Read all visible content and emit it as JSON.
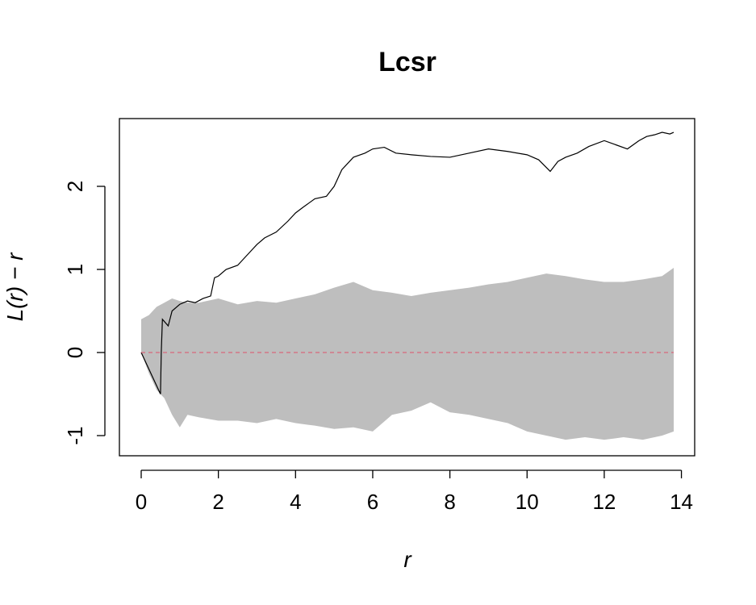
{
  "chart_data": {
    "type": "line",
    "title": "Lcsr",
    "xlabel": "r",
    "ylabel": "L(r) − r",
    "xlim": [
      0,
      13.8
    ],
    "ylim": [
      -1.25,
      2.8
    ],
    "x_ticks": [
      0,
      2,
      4,
      6,
      8,
      10,
      12,
      14
    ],
    "x_tick_labels": [
      "0",
      "2",
      "4",
      "6",
      "8",
      "10",
      "12",
      "14"
    ],
    "y_ticks": [
      -1,
      0,
      1,
      2
    ],
    "y_tick_labels": [
      "-1",
      "0",
      "1",
      "2"
    ],
    "grid": false,
    "legend": "none",
    "series": [
      {
        "role": "observed",
        "color": "#000000",
        "x": [
          0,
          0.5,
          0.52,
          0.55,
          0.7,
          0.8,
          1.0,
          1.2,
          1.4,
          1.6,
          1.8,
          1.9,
          2.0,
          2.2,
          2.5,
          2.8,
          3.0,
          3.2,
          3.5,
          3.8,
          4.0,
          4.2,
          4.5,
          4.8,
          5.0,
          5.2,
          5.5,
          5.8,
          6.0,
          6.3,
          6.6,
          7.0,
          7.5,
          8.0,
          8.5,
          9.0,
          9.5,
          10.0,
          10.3,
          10.6,
          10.8,
          11.0,
          11.3,
          11.6,
          12.0,
          12.3,
          12.6,
          12.9,
          13.1,
          13.3,
          13.5,
          13.7,
          13.8
        ],
        "y": [
          0,
          -0.5,
          0.0,
          0.4,
          0.32,
          0.5,
          0.58,
          0.62,
          0.6,
          0.65,
          0.68,
          0.9,
          0.92,
          1.0,
          1.05,
          1.2,
          1.3,
          1.38,
          1.45,
          1.58,
          1.68,
          1.75,
          1.85,
          1.88,
          2.0,
          2.2,
          2.35,
          2.4,
          2.45,
          2.47,
          2.4,
          2.38,
          2.36,
          2.35,
          2.4,
          2.45,
          2.42,
          2.38,
          2.32,
          2.18,
          2.3,
          2.35,
          2.4,
          2.48,
          2.55,
          2.5,
          2.45,
          2.55,
          2.6,
          2.62,
          2.65,
          2.63,
          2.65
        ]
      },
      {
        "role": "theoretical",
        "color": "#df536b",
        "dash": "dashed",
        "x": [
          0,
          13.8
        ],
        "y": [
          0,
          0
        ]
      }
    ],
    "envelope": {
      "color": "#bebebe",
      "x": [
        0,
        0.2,
        0.4,
        0.6,
        0.8,
        1.0,
        1.2,
        1.5,
        2.0,
        2.5,
        3.0,
        3.5,
        4.0,
        4.5,
        5.0,
        5.5,
        6.0,
        6.5,
        7.0,
        7.5,
        8.0,
        8.5,
        9.0,
        9.5,
        10.0,
        10.5,
        11.0,
        11.5,
        12.0,
        12.5,
        13.0,
        13.5,
        13.8
      ],
      "upper": [
        0.4,
        0.45,
        0.55,
        0.6,
        0.65,
        0.62,
        0.6,
        0.6,
        0.65,
        0.58,
        0.62,
        0.6,
        0.65,
        0.7,
        0.78,
        0.85,
        0.75,
        0.72,
        0.68,
        0.72,
        0.75,
        0.78,
        0.82,
        0.85,
        0.9,
        0.95,
        0.92,
        0.88,
        0.85,
        0.85,
        0.88,
        0.92,
        1.02
      ],
      "lower": [
        0,
        -0.25,
        -0.45,
        -0.55,
        -0.75,
        -0.9,
        -0.75,
        -0.78,
        -0.82,
        -0.82,
        -0.85,
        -0.8,
        -0.85,
        -0.88,
        -0.92,
        -0.9,
        -0.95,
        -0.75,
        -0.7,
        -0.6,
        -0.72,
        -0.75,
        -0.8,
        -0.85,
        -0.95,
        -1.0,
        -1.05,
        -1.02,
        -1.05,
        -1.02,
        -1.05,
        -1.0,
        -0.95
      ]
    }
  }
}
